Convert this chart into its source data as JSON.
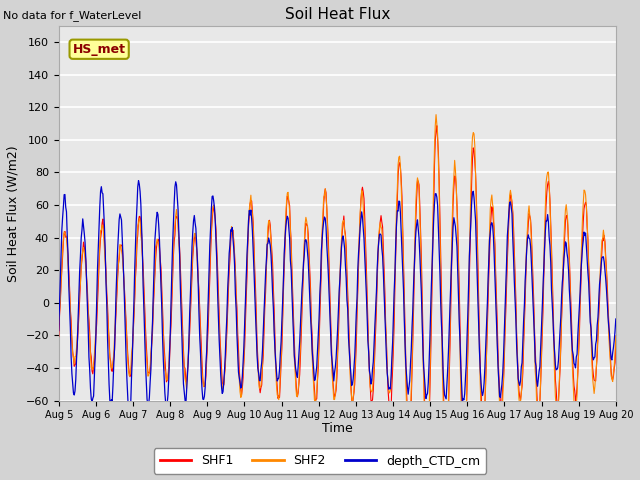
{
  "title": "Soil Heat Flux",
  "ylabel": "Soil Heat Flux (W/m2)",
  "xlabel": "Time",
  "no_data_text": "No data for f_WaterLevel",
  "hs_met_label": "HS_met",
  "legend_labels": [
    "SHF1",
    "SHF2",
    "depth_CTD_cm"
  ],
  "line_colors": [
    "#ff0000",
    "#ff8800",
    "#0000cc"
  ],
  "ylim": [
    -60,
    170
  ],
  "xlim_start": 5,
  "xlim_end": 20,
  "yticks": [
    -60,
    -40,
    -20,
    0,
    20,
    40,
    60,
    80,
    100,
    120,
    140,
    160
  ],
  "xtick_days": [
    5,
    6,
    7,
    8,
    9,
    10,
    11,
    12,
    13,
    14,
    15,
    16,
    17,
    18,
    19,
    20
  ],
  "bg_color": "#e8e8e8",
  "grid_color": "#ffffff",
  "fig_bg": "#d3d3d3"
}
